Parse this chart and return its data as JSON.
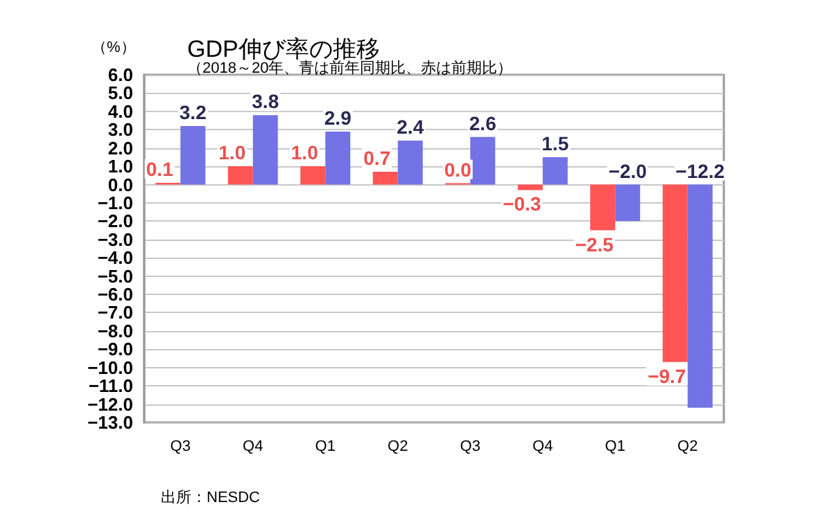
{
  "chart_data": {
    "type": "bar",
    "title": "GDP伸び率の推移",
    "subtitle": "（2018～20年、青は前年同期比、赤は前期比）",
    "ylabel": "（%）",
    "categories": [
      "Q3",
      "Q4",
      "Q1",
      "Q2",
      "Q3",
      "Q4",
      "Q1",
      "Q2"
    ],
    "series": [
      {
        "color": "#ff5555",
        "values": [
          0.1,
          1.0,
          1.0,
          0.7,
          0.0,
          -0.3,
          -2.5,
          -9.7
        ],
        "value_labels": [
          "0.1",
          "1.0",
          "1.0",
          "0.7",
          "0.0",
          "−0.3",
          "−2.5",
          "−9.7"
        ]
      },
      {
        "color": "#7373e6",
        "values": [
          3.2,
          3.8,
          2.9,
          2.4,
          2.6,
          1.5,
          -2.0,
          -12.2
        ],
        "value_labels": [
          "3.2",
          "3.8",
          "2.9",
          "2.4",
          "2.6",
          "1.5",
          "−2.0",
          "−12.2"
        ]
      }
    ],
    "ylim": [
      -13,
      6
    ],
    "yticks": [
      {
        "value": 6,
        "label": "6.0"
      },
      {
        "value": 5,
        "label": "5.0"
      },
      {
        "value": 4,
        "label": "4.0"
      },
      {
        "value": 3,
        "label": "3.0"
      },
      {
        "value": 2,
        "label": "2.0"
      },
      {
        "value": 1,
        "label": "1.0"
      },
      {
        "value": 0,
        "label": "0.0"
      },
      {
        "value": -1,
        "label": "−1.0"
      },
      {
        "value": -2,
        "label": "−2.0"
      },
      {
        "value": -3,
        "label": "−3.0"
      },
      {
        "value": -4,
        "label": "−4.0"
      },
      {
        "value": -5,
        "label": "−5.0"
      },
      {
        "value": -6,
        "label": "−6.0"
      },
      {
        "value": -7,
        "label": "−7.0"
      },
      {
        "value": -8,
        "label": "−8.0"
      },
      {
        "value": -9,
        "label": "−9.0"
      },
      {
        "value": -10,
        "label": "−10.0"
      },
      {
        "value": -11,
        "label": "−11.0"
      },
      {
        "value": -12,
        "label": "−12.0"
      },
      {
        "value": -13,
        "label": "−13.0"
      }
    ],
    "grid": "y",
    "annotations": [
      "出所：NESDC"
    ]
  }
}
